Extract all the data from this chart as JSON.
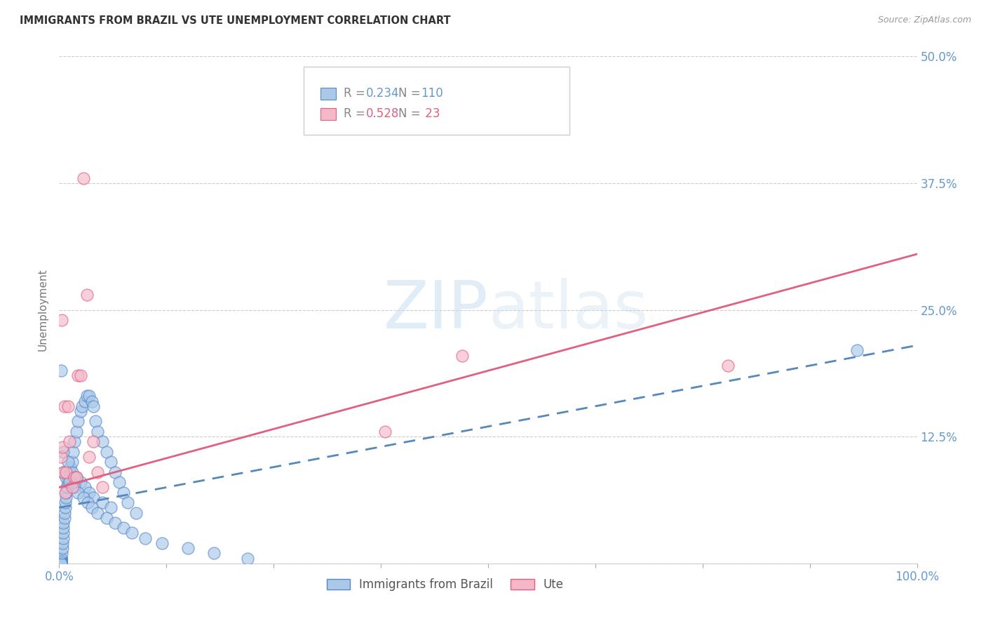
{
  "title": "IMMIGRANTS FROM BRAZIL VS UTE UNEMPLOYMENT CORRELATION CHART",
  "source": "Source: ZipAtlas.com",
  "ylabel": "Unemployment",
  "watermark_zip": "ZIP",
  "watermark_atlas": "atlas",
  "x_ticks": [
    0.0,
    0.125,
    0.25,
    0.375,
    0.5,
    0.625,
    0.75,
    0.875,
    1.0
  ],
  "x_tick_labels": [
    "0.0%",
    "",
    "",
    "",
    "",
    "",
    "",
    "",
    "100.0%"
  ],
  "y_ticks": [
    0.0,
    0.125,
    0.25,
    0.375,
    0.5
  ],
  "right_tick_labels": [
    "",
    "12.5%",
    "25.0%",
    "37.5%",
    "50.0%"
  ],
  "xlim": [
    0.0,
    1.0
  ],
  "ylim": [
    0.0,
    0.5
  ],
  "brazil_color": "#aac8e8",
  "brazil_edge_color": "#5588cc",
  "ute_color": "#f5b8c8",
  "ute_edge_color": "#e06080",
  "brazil_R": 0.234,
  "brazil_N": 110,
  "ute_R": 0.528,
  "ute_N": 23,
  "brazil_line_color": "#5588bb",
  "ute_line_color": "#e06080",
  "grid_color": "#cccccc",
  "background_color": "#ffffff",
  "axis_label_color": "#6699cc",
  "title_color": "#333333",
  "legend_brazil_label": "Immigrants from Brazil",
  "legend_ute_label": "Ute",
  "brazil_line_x0": 0.0,
  "brazil_line_y0": 0.055,
  "brazil_line_x1": 1.0,
  "brazil_line_y1": 0.215,
  "ute_line_x0": 0.0,
  "ute_line_y0": 0.075,
  "ute_line_x1": 1.0,
  "ute_line_y1": 0.305,
  "brazil_scatter_x": [
    0.002,
    0.002,
    0.002,
    0.002,
    0.002,
    0.002,
    0.002,
    0.002,
    0.002,
    0.002,
    0.002,
    0.002,
    0.002,
    0.002,
    0.002,
    0.002,
    0.002,
    0.002,
    0.002,
    0.002,
    0.002,
    0.002,
    0.002,
    0.002,
    0.002,
    0.002,
    0.002,
    0.002,
    0.002,
    0.002,
    0.002,
    0.002,
    0.002,
    0.002,
    0.002,
    0.002,
    0.002,
    0.002,
    0.002,
    0.002,
    0.003,
    0.004,
    0.004,
    0.005,
    0.005,
    0.005,
    0.005,
    0.006,
    0.006,
    0.007,
    0.007,
    0.008,
    0.008,
    0.009,
    0.01,
    0.01,
    0.012,
    0.013,
    0.015,
    0.016,
    0.018,
    0.02,
    0.022,
    0.025,
    0.027,
    0.03,
    0.032,
    0.035,
    0.038,
    0.04,
    0.042,
    0.045,
    0.05,
    0.055,
    0.06,
    0.065,
    0.07,
    0.075,
    0.08,
    0.09,
    0.005,
    0.01,
    0.015,
    0.02,
    0.025,
    0.03,
    0.035,
    0.04,
    0.05,
    0.06,
    0.005,
    0.008,
    0.012,
    0.018,
    0.022,
    0.028,
    0.033,
    0.038,
    0.045,
    0.055,
    0.065,
    0.075,
    0.085,
    0.1,
    0.12,
    0.15,
    0.18,
    0.22,
    0.93,
    0.002
  ],
  "brazil_scatter_y": [
    0.005,
    0.005,
    0.005,
    0.005,
    0.005,
    0.005,
    0.005,
    0.005,
    0.005,
    0.005,
    0.005,
    0.005,
    0.005,
    0.005,
    0.005,
    0.002,
    0.002,
    0.002,
    0.002,
    0.002,
    0.002,
    0.002,
    0.002,
    0.001,
    0.001,
    0.001,
    0.001,
    0.001,
    0.001,
    0.001,
    0.0,
    0.0,
    0.0,
    0.0,
    0.0,
    0.0,
    0.0,
    0.0,
    0.0,
    0.0,
    0.01,
    0.015,
    0.02,
    0.025,
    0.03,
    0.035,
    0.04,
    0.045,
    0.05,
    0.055,
    0.06,
    0.065,
    0.07,
    0.075,
    0.08,
    0.085,
    0.09,
    0.095,
    0.1,
    0.11,
    0.12,
    0.13,
    0.14,
    0.15,
    0.155,
    0.16,
    0.165,
    0.165,
    0.16,
    0.155,
    0.14,
    0.13,
    0.12,
    0.11,
    0.1,
    0.09,
    0.08,
    0.07,
    0.06,
    0.05,
    0.11,
    0.1,
    0.09,
    0.085,
    0.08,
    0.075,
    0.07,
    0.065,
    0.06,
    0.055,
    0.09,
    0.085,
    0.08,
    0.075,
    0.07,
    0.065,
    0.06,
    0.055,
    0.05,
    0.045,
    0.04,
    0.035,
    0.03,
    0.025,
    0.02,
    0.015,
    0.01,
    0.005,
    0.21,
    0.19
  ],
  "ute_scatter_x": [
    0.002,
    0.003,
    0.004,
    0.005,
    0.006,
    0.007,
    0.008,
    0.01,
    0.012,
    0.015,
    0.018,
    0.02,
    0.022,
    0.025,
    0.028,
    0.032,
    0.035,
    0.04,
    0.045,
    0.05,
    0.38,
    0.47,
    0.78
  ],
  "ute_scatter_y": [
    0.105,
    0.24,
    0.115,
    0.09,
    0.155,
    0.07,
    0.09,
    0.155,
    0.12,
    0.075,
    0.085,
    0.085,
    0.185,
    0.185,
    0.38,
    0.265,
    0.105,
    0.12,
    0.09,
    0.075,
    0.13,
    0.205,
    0.195
  ]
}
